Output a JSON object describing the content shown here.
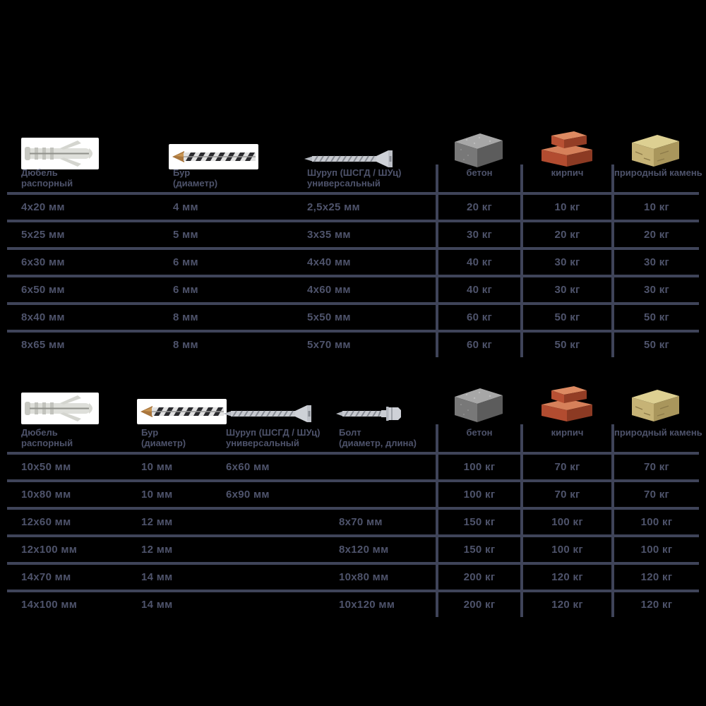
{
  "colors": {
    "background": "#000000",
    "text": "#4e536b",
    "line": "#3f4459"
  },
  "units": {
    "length": "мм",
    "weight": "кг"
  },
  "chart_data": [
    {
      "type": "table",
      "name": "expansion-dowel-load-capacity-small-sizes",
      "columns": [
        {
          "id": "dowel",
          "icon": "dowel-icon",
          "type": "size",
          "label": [
            "Дюбель",
            "распорный"
          ]
        },
        {
          "id": "drill",
          "icon": "drill-icon",
          "type": "size",
          "label": [
            "Бур",
            "(диаметр)"
          ]
        },
        {
          "id": "screw",
          "icon": "screw-icon",
          "type": "size",
          "label": [
            "Шуруп (ШСГД / ШУц)",
            "универсальный"
          ]
        },
        {
          "id": "concrete",
          "icon": "concrete-block-icon",
          "type": "load",
          "label": [
            "бетон"
          ]
        },
        {
          "id": "brick",
          "icon": "brick-icon",
          "type": "load",
          "label": [
            "кирпич"
          ]
        },
        {
          "id": "stone",
          "icon": "stone-icon",
          "type": "load",
          "label": [
            "природный камень"
          ]
        }
      ],
      "rows": [
        [
          "4x20 мм",
          "4 мм",
          "2,5x25 мм",
          "20 кг",
          "10 кг",
          "10 кг"
        ],
        [
          "5x25 мм",
          "5 мм",
          "3x35 мм",
          "30 кг",
          "20 кг",
          "20 кг"
        ],
        [
          "6x30 мм",
          "6 мм",
          "4x40 мм",
          "40 кг",
          "30 кг",
          "30 кг"
        ],
        [
          "6x50 мм",
          "6 мм",
          "4x60 мм",
          "40 кг",
          "30 кг",
          "30 кг"
        ],
        [
          "8x40 мм",
          "8 мм",
          "5x50 мм",
          "60 кг",
          "50 кг",
          "50 кг"
        ],
        [
          "8x65 мм",
          "8 мм",
          "5x70 мм",
          "60 кг",
          "50 кг",
          "50 кг"
        ]
      ]
    },
    {
      "type": "table",
      "name": "expansion-dowel-load-capacity-large-sizes",
      "columns": [
        {
          "id": "dowel",
          "icon": "dowel-icon",
          "type": "size",
          "label": [
            "Дюбель",
            "распорный"
          ]
        },
        {
          "id": "drill",
          "icon": "drill-icon",
          "type": "size",
          "label": [
            "Бур",
            "(диаметр)"
          ]
        },
        {
          "id": "screw",
          "icon": "screw-icon",
          "type": "size",
          "label": [
            "Шуруп (ШСГД / ШУц)",
            "универсальный"
          ]
        },
        {
          "id": "bolt",
          "icon": "bolt-icon",
          "type": "size",
          "label": [
            "Болт",
            "(диаметр, длина)"
          ]
        },
        {
          "id": "concrete",
          "icon": "concrete-block-icon",
          "type": "load",
          "label": [
            "бетон"
          ]
        },
        {
          "id": "brick",
          "icon": "brick-icon",
          "type": "load",
          "label": [
            "кирпич"
          ]
        },
        {
          "id": "stone",
          "icon": "stone-icon",
          "type": "load",
          "label": [
            "природный камень"
          ]
        }
      ],
      "rows": [
        [
          "10x50 мм",
          "10 мм",
          "6x60 мм",
          "",
          "100 кг",
          "70 кг",
          "70 кг"
        ],
        [
          "10x80 мм",
          "10 мм",
          "6x90 мм",
          "",
          "100 кг",
          "70 кг",
          "70 кг"
        ],
        [
          "12x60 мм",
          "12 мм",
          "",
          "8x70 мм",
          "150 кг",
          "100 кг",
          "100 кг"
        ],
        [
          "12x100 мм",
          "12 мм",
          "",
          "8x120 мм",
          "150 кг",
          "100 кг",
          "100 кг"
        ],
        [
          "14x70 мм",
          "14 мм",
          "",
          "10x80 мм",
          "200 кг",
          "120 кг",
          "120 кг"
        ],
        [
          "14x100 мм",
          "14 мм",
          "",
          "10x120 мм",
          "200 кг",
          "120 кг",
          "120 кг"
        ]
      ]
    }
  ]
}
